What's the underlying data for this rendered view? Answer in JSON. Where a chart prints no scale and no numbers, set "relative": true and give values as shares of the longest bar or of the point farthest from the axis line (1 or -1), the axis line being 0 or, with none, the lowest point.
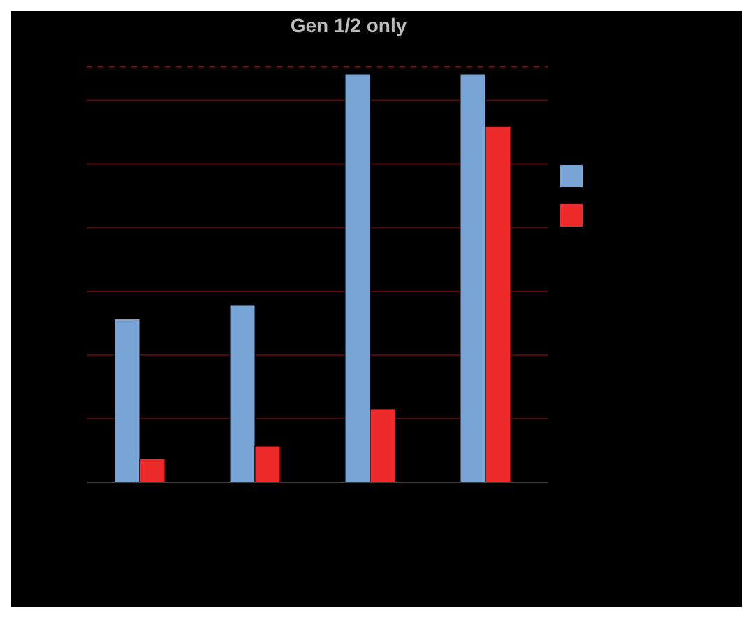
{
  "chart_data": {
    "type": "bar",
    "title": "Gen 1/2 only",
    "categories": [
      null,
      null,
      null,
      null
    ],
    "relative": true,
    "series": [
      {
        "color": "#78a4d6",
        "values": [
          0.4,
          0.435,
          1,
          1
        ]
      },
      {
        "color": "#ee2b2b",
        "values": [
          0.058,
          0.089,
          0.18,
          0.873
        ]
      }
    ],
    "ref_lines": [
      {
        "axis": "y",
        "value": 0.156,
        "color": "#5a0a0a"
      },
      {
        "axis": "y",
        "value": 0.312,
        "color": "#5a0a0a"
      },
      {
        "axis": "y",
        "value": 0.468,
        "color": "#5a0a0a"
      },
      {
        "axis": "y",
        "value": 0.624,
        "color": "#5a0a0a"
      },
      {
        "axis": "y",
        "value": 0.78,
        "color": "#5a0a0a"
      },
      {
        "axis": "y",
        "value": 0.936,
        "color": "#5a0a0a"
      },
      {
        "axis": "y",
        "value": 1.018,
        "color": "#8a1010",
        "line_style": "dashed"
      }
    ]
  }
}
